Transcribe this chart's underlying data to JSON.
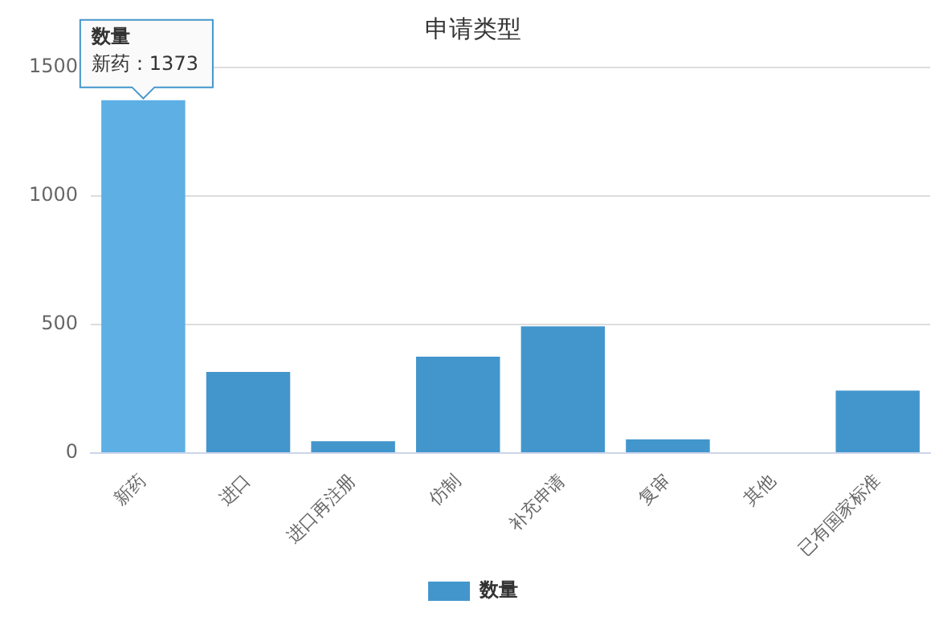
{
  "chart_data": {
    "type": "bar",
    "title": "申请类型",
    "categories": [
      "新药",
      "进口",
      "进口再注册",
      "仿制",
      "补充申请",
      "复审",
      "其他",
      "已有国家标准"
    ],
    "series": [
      {
        "name": "数量",
        "color": "#4396cc",
        "colors": [
          "#5dafe4",
          "#4396cc",
          "#4396cc",
          "#4396cc",
          "#4396cc",
          "#4396cc",
          "#4396cc",
          "#4396cc"
        ],
        "values": [
          1373,
          316,
          46,
          375,
          493,
          53,
          0,
          243
        ]
      }
    ],
    "ylim": [
      0,
      1500
    ],
    "yticks": [
      0,
      500,
      1000,
      1500
    ],
    "grid": "y",
    "legend": "bottom",
    "annotations": [
      {
        "text": "数量",
        "x": "新药",
        "y": 1373
      },
      {
        "text": "新药：1373",
        "x": "新药",
        "y": 1373
      }
    ]
  }
}
